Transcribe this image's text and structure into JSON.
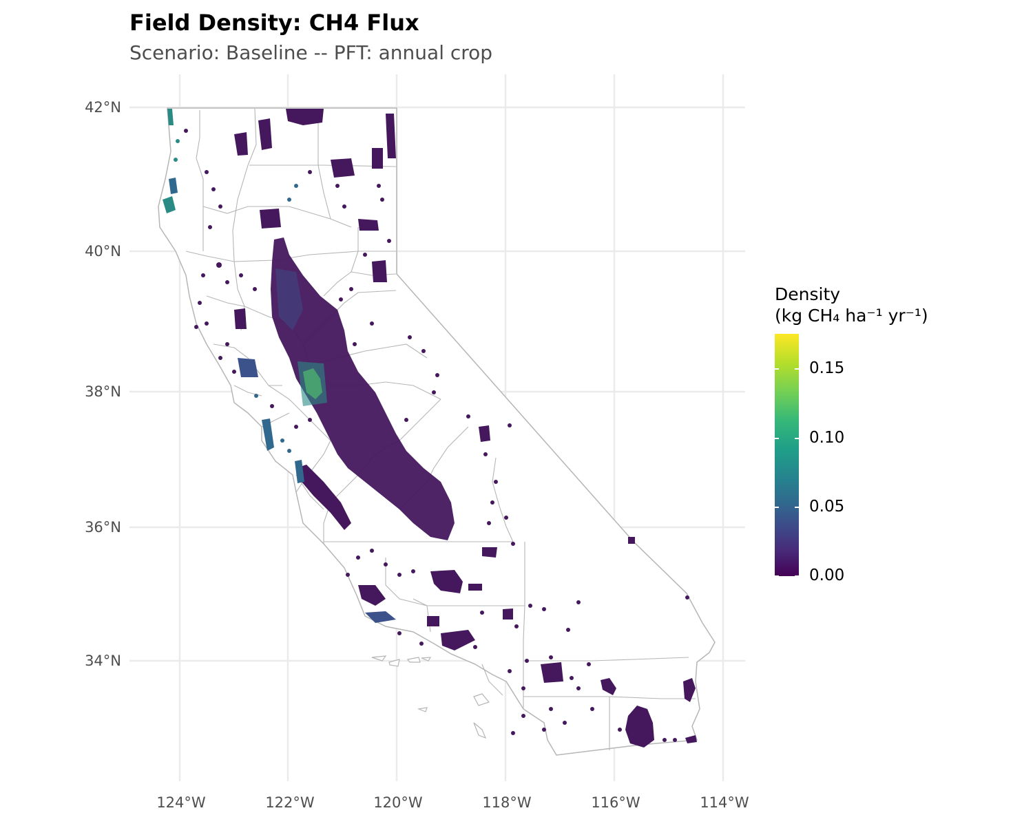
{
  "title": "Field Density: CH4 Flux",
  "subtitle": "Scenario: Baseline  --  PFT: annual crop",
  "axes": {
    "lat_labels": [
      "42°N",
      "40°N",
      "38°N",
      "36°N",
      "34°N"
    ],
    "lon_labels": [
      "124°W",
      "122°W",
      "120°W",
      "118°W",
      "116°W",
      "114°W"
    ]
  },
  "legend": {
    "title_line1": "Density",
    "title_line2": "(kg CH₄ ha⁻¹ yr⁻¹)",
    "labels": [
      "0.15",
      "0.10",
      "0.05",
      "0.00"
    ],
    "range": [
      0,
      0.175
    ],
    "colors": [
      "#440154",
      "#3e4989",
      "#26828e",
      "#35b779",
      "#b5de2b",
      "#fde725"
    ]
  },
  "colors": {
    "field_low": "#45185e",
    "field_mid": "#3b528b",
    "field_teal": "#2a8a84",
    "field_high": "#7ad151",
    "county_lines": "#b5b5b5",
    "grid": "#ebebeb"
  }
}
